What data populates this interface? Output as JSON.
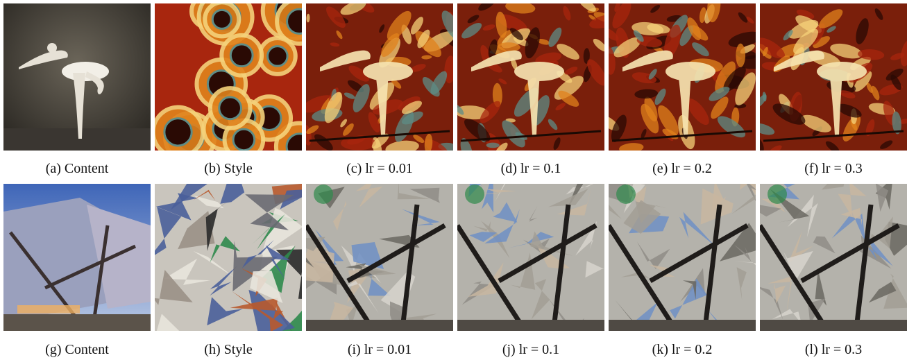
{
  "rows": [
    {
      "panels": [
        {
          "id": "a",
          "caption": "(a) Content",
          "kind": "content-ballet"
        },
        {
          "id": "b",
          "caption": "(b) Style",
          "kind": "style-swirls"
        },
        {
          "id": "c",
          "caption": "(c) lr = 0.01",
          "kind": "stylized-ballet"
        },
        {
          "id": "d",
          "caption": "(d) lr = 0.1",
          "kind": "stylized-ballet"
        },
        {
          "id": "e",
          "caption": "(e) lr = 0.2",
          "kind": "stylized-ballet"
        },
        {
          "id": "f",
          "caption": "(f) lr = 0.3",
          "kind": "stylized-ballet"
        }
      ]
    },
    {
      "panels": [
        {
          "id": "g",
          "caption": "(g) Content",
          "kind": "content-building"
        },
        {
          "id": "h",
          "caption": "(h) Style",
          "kind": "style-cubist"
        },
        {
          "id": "i",
          "caption": "(i) lr = 0.01",
          "kind": "stylized-building"
        },
        {
          "id": "j",
          "caption": "(j) lr = 0.1",
          "kind": "stylized-building"
        },
        {
          "id": "k",
          "caption": "(k) lr = 0.2",
          "kind": "stylized-building"
        },
        {
          "id": "l",
          "caption": "(l) lr = 0.3",
          "kind": "stylized-building"
        }
      ]
    }
  ],
  "colors": {
    "fire_dark": "#2a0a04",
    "fire_red": "#a8260e",
    "fire_orange": "#e0821c",
    "fire_yellow": "#f5d27a",
    "teal": "#5e8c86",
    "cubist_green": "#2f8a4c",
    "cubist_blue": "#4a5f9a",
    "stone": "#b8b4ac",
    "sky": "#6f8fc4"
  }
}
